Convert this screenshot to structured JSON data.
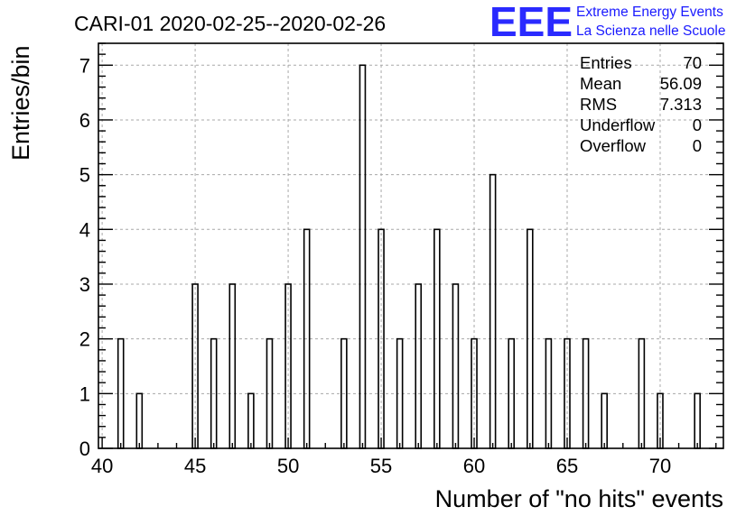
{
  "chart_data": {
    "type": "bar",
    "title": "CARI-01 2020-02-25--2020-02-26",
    "xlabel": "Number of \"no hits\" events",
    "ylabel": "Entries/bin",
    "xlim": [
      39.8,
      73.4
    ],
    "ylim": [
      0,
      7.4
    ],
    "bin_width": 1,
    "bins": [
      {
        "x": 41,
        "value": 2
      },
      {
        "x": 42,
        "value": 1
      },
      {
        "x": 45,
        "value": 3
      },
      {
        "x": 46,
        "value": 2
      },
      {
        "x": 47,
        "value": 3
      },
      {
        "x": 48,
        "value": 1
      },
      {
        "x": 49,
        "value": 2
      },
      {
        "x": 50,
        "value": 3
      },
      {
        "x": 51,
        "value": 4
      },
      {
        "x": 53,
        "value": 2
      },
      {
        "x": 54,
        "value": 7
      },
      {
        "x": 55,
        "value": 4
      },
      {
        "x": 56,
        "value": 2
      },
      {
        "x": 57,
        "value": 3
      },
      {
        "x": 58,
        "value": 4
      },
      {
        "x": 59,
        "value": 3
      },
      {
        "x": 60,
        "value": 2
      },
      {
        "x": 61,
        "value": 5
      },
      {
        "x": 62,
        "value": 2
      },
      {
        "x": 63,
        "value": 4
      },
      {
        "x": 64,
        "value": 2
      },
      {
        "x": 65,
        "value": 2
      },
      {
        "x": 66,
        "value": 2
      },
      {
        "x": 67,
        "value": 1
      },
      {
        "x": 69,
        "value": 2
      },
      {
        "x": 70,
        "value": 1
      },
      {
        "x": 72,
        "value": 1
      }
    ],
    "x_ticks": [
      40,
      45,
      50,
      55,
      60,
      65,
      70
    ],
    "y_ticks": [
      0,
      1,
      2,
      3,
      4,
      5,
      6,
      7
    ],
    "grid": true,
    "legend": "none"
  },
  "stats": {
    "entries_label": "Entries",
    "entries_value": "70",
    "mean_label": "Mean",
    "mean_value": "56.09",
    "rms_label": "RMS",
    "rms_value": "7.313",
    "underflow_label": "Underflow",
    "underflow_value": "0",
    "overflow_label": "Overflow",
    "overflow_value": "0"
  },
  "logo": {
    "mark": "EEE",
    "line1": "Extreme Energy Events",
    "line2": "La Scienza nelle Scuole"
  },
  "colors": {
    "bar_stroke": "#000000",
    "grid": "#a8a8a8",
    "logo": "#1a1aff"
  }
}
